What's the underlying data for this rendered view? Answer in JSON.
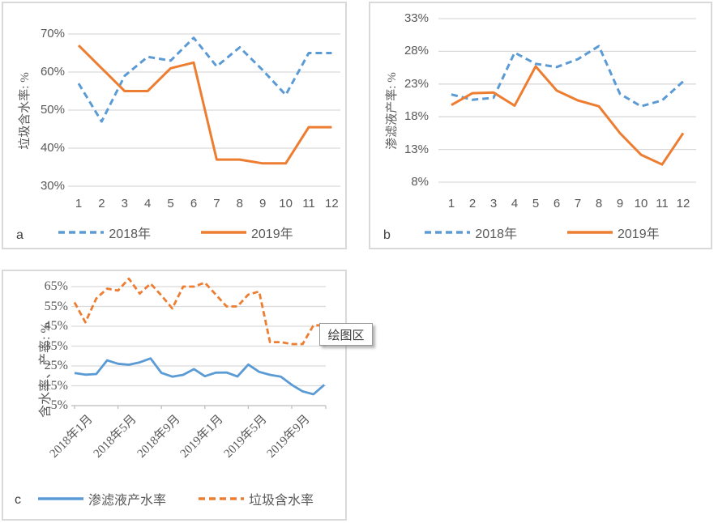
{
  "colors": {
    "series_blue": "#5B9BD5",
    "series_orange": "#ED7D31",
    "gridline": "#D9D9D9",
    "axis_line": "#BFBFBF",
    "text": "#595959",
    "panel_border": "#D9D9D9"
  },
  "tooltip": {
    "label": "绘图区"
  },
  "chart_data": [
    {
      "id": "a",
      "type": "line",
      "panel_label": "a",
      "ylabel": "垃圾含水率: %",
      "ylim": [
        30,
        70
      ],
      "ystep": 10,
      "ytick_suffix": "%",
      "grid": true,
      "legend_position": "bottom",
      "categories": [
        "1",
        "2",
        "3",
        "4",
        "5",
        "6",
        "7",
        "8",
        "9",
        "10",
        "11",
        "12"
      ],
      "series": [
        {
          "name": "2018年",
          "color": "#5B9BD5",
          "dash": true,
          "values": [
            57,
            47,
            59,
            64,
            63,
            69,
            61.5,
            66.5,
            60.5,
            54,
            65,
            65
          ]
        },
        {
          "name": "2019年",
          "color": "#ED7D31",
          "dash": false,
          "values": [
            67,
            61,
            55,
            55,
            61,
            62.5,
            37,
            37,
            36,
            36,
            45.5,
            45.5
          ]
        }
      ]
    },
    {
      "id": "b",
      "type": "line",
      "panel_label": "b",
      "ylabel": "渗滤液产率: %",
      "ylim": [
        8,
        33
      ],
      "ystep": 5,
      "ytick_suffix": "%",
      "grid": true,
      "legend_position": "bottom",
      "categories": [
        "1",
        "2",
        "3",
        "4",
        "5",
        "6",
        "7",
        "8",
        "9",
        "10",
        "11",
        "12"
      ],
      "series": [
        {
          "name": "2018年",
          "color": "#5B9BD5",
          "dash": true,
          "values": [
            21.4,
            20.6,
            20.9,
            27.8,
            26.1,
            25.6,
            26.8,
            28.8,
            21.5,
            19.6,
            20.5,
            23.4
          ]
        },
        {
          "name": "2019年",
          "color": "#ED7D31",
          "dash": false,
          "values": [
            19.8,
            21.6,
            21.7,
            19.7,
            25.7,
            22,
            20.5,
            19.6,
            15.5,
            12.2,
            10.7,
            15.5
          ]
        }
      ]
    },
    {
      "id": "c",
      "type": "line",
      "panel_label": "c",
      "ylabel": "含水率、产率: %",
      "ylim": [
        5,
        65
      ],
      "ystep": 10,
      "ytick_suffix": "%",
      "grid": true,
      "legend_position": "bottom",
      "x_count": 24,
      "xticks": [
        {
          "i": 0,
          "label": "2018年1月"
        },
        {
          "i": 4,
          "label": "2018年5月"
        },
        {
          "i": 8,
          "label": "2018年9月"
        },
        {
          "i": 12,
          "label": "2019年1月"
        },
        {
          "i": 16,
          "label": "2019年5月"
        },
        {
          "i": 20,
          "label": "2019年9月"
        }
      ],
      "series": [
        {
          "name": "渗滤液产水率",
          "color": "#5B9BD5",
          "dash": false,
          "values": [
            21.4,
            20.6,
            20.9,
            27.8,
            26.1,
            25.6,
            26.8,
            28.8,
            21.5,
            19.6,
            20.5,
            23.4,
            19.8,
            21.6,
            21.7,
            19.7,
            25.7,
            22,
            20.5,
            19.6,
            15.5,
            12.2,
            10.7,
            15.5
          ]
        },
        {
          "name": "垃圾含水率",
          "color": "#ED7D31",
          "dash": true,
          "values": [
            57,
            47,
            59,
            64,
            63,
            69,
            61.5,
            66.5,
            60.5,
            54,
            65,
            65,
            67,
            61,
            55,
            55,
            61,
            62.5,
            37,
            37,
            36,
            36,
            45.5,
            45.5
          ]
        }
      ]
    }
  ]
}
